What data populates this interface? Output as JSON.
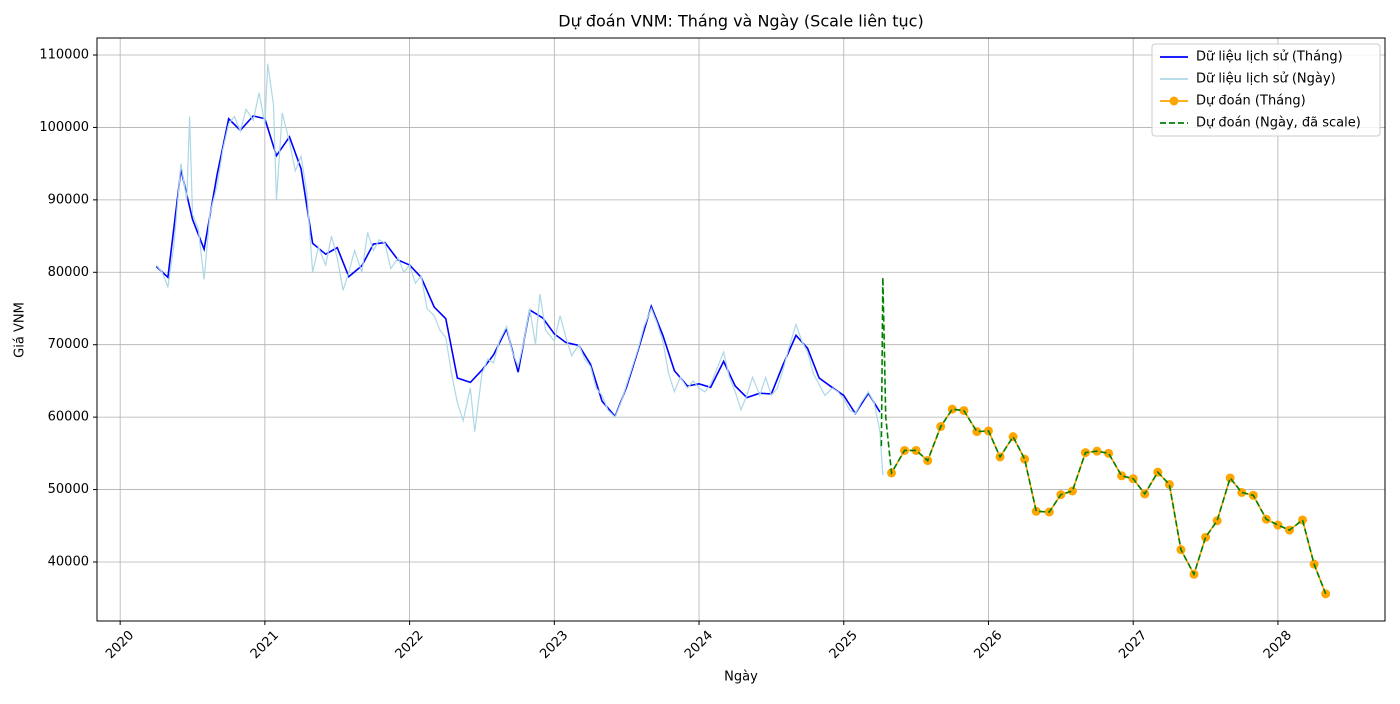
{
  "chart_data": {
    "type": "line",
    "title": "Dự đoán VNM: Tháng và Ngày (Scale liên tục)",
    "x_label": "Ngày",
    "y_label": "Giá VNM",
    "xlim": [
      2019.84,
      2028.74
    ],
    "ylim": [
      31850,
      112350
    ],
    "xticks": [
      2020,
      2021,
      2022,
      2023,
      2024,
      2025,
      2026,
      2027,
      2028
    ],
    "yticks": [
      40000,
      50000,
      60000,
      70000,
      80000,
      90000,
      100000,
      110000
    ],
    "grid": true,
    "legend_loc": "upper right",
    "series": [
      {
        "name": "Dữ liệu lịch sử (Tháng)",
        "color": "#0000ff",
        "dashed": false,
        "marker": false,
        "x": [
          2020.25,
          2020.33,
          2020.42,
          2020.5,
          2020.58,
          2020.67,
          2020.75,
          2020.83,
          2020.92,
          2021.0,
          2021.08,
          2021.17,
          2021.25,
          2021.33,
          2021.42,
          2021.5,
          2021.58,
          2021.67,
          2021.75,
          2021.83,
          2021.92,
          2022.0,
          2022.08,
          2022.17,
          2022.25,
          2022.33,
          2022.42,
          2022.5,
          2022.58,
          2022.67,
          2022.75,
          2022.83,
          2022.92,
          2023.0,
          2023.08,
          2023.17,
          2023.25,
          2023.33,
          2023.42,
          2023.5,
          2023.58,
          2023.67,
          2023.75,
          2023.83,
          2023.92,
          2024.0,
          2024.08,
          2024.17,
          2024.25,
          2024.33,
          2024.42,
          2024.5,
          2024.58,
          2024.67,
          2024.75,
          2024.83,
          2024.92,
          2025.0,
          2025.08,
          2025.17,
          2025.25
        ],
        "values": [
          80800,
          79300,
          94200,
          87300,
          83200,
          93500,
          101200,
          99600,
          101600,
          101200,
          96100,
          98700,
          94300,
          84000,
          82500,
          83400,
          79400,
          80900,
          83900,
          84100,
          81700,
          81000,
          79300,
          75200,
          73600,
          65400,
          64800,
          66500,
          68600,
          72200,
          66200,
          74800,
          73700,
          71500,
          70300,
          69900,
          67300,
          62200,
          60100,
          64200,
          69300,
          75300,
          71300,
          66400,
          64300,
          64600,
          64100,
          67700,
          64300,
          62700,
          63300,
          63200,
          67200,
          71300,
          69500,
          65400,
          64100,
          63000,
          60500,
          63300,
          60700
        ]
      },
      {
        "name": "Dữ liệu lịch sử (Ngày)",
        "color": "#add8e6",
        "dashed": false,
        "marker": false,
        "x": [
          2020.25,
          2020.29,
          2020.33,
          2020.37,
          2020.42,
          2020.46,
          2020.48,
          2020.5,
          2020.54,
          2020.58,
          2020.62,
          2020.67,
          2020.71,
          2020.75,
          2020.79,
          2020.83,
          2020.87,
          2020.92,
          2020.96,
          2021.0,
          2021.02,
          2021.06,
          2021.08,
          2021.12,
          2021.17,
          2021.21,
          2021.25,
          2021.29,
          2021.33,
          2021.37,
          2021.42,
          2021.46,
          2021.5,
          2021.54,
          2021.58,
          2021.62,
          2021.67,
          2021.71,
          2021.75,
          2021.79,
          2021.83,
          2021.87,
          2021.92,
          2021.96,
          2022.0,
          2022.04,
          2022.08,
          2022.12,
          2022.17,
          2022.21,
          2022.25,
          2022.29,
          2022.33,
          2022.37,
          2022.42,
          2022.45,
          2022.5,
          2022.54,
          2022.58,
          2022.62,
          2022.67,
          2022.71,
          2022.75,
          2022.79,
          2022.83,
          2022.87,
          2022.9,
          2022.94,
          2023.0,
          2023.04,
          2023.08,
          2023.12,
          2023.17,
          2023.21,
          2023.25,
          2023.29,
          2023.33,
          2023.37,
          2023.42,
          2023.46,
          2023.5,
          2023.54,
          2023.58,
          2023.62,
          2023.67,
          2023.71,
          2023.75,
          2023.79,
          2023.83,
          2023.87,
          2023.92,
          2023.96,
          2024.0,
          2024.04,
          2024.08,
          2024.12,
          2024.17,
          2024.21,
          2024.25,
          2024.29,
          2024.33,
          2024.37,
          2024.42,
          2024.46,
          2024.5,
          2024.54,
          2024.58,
          2024.62,
          2024.67,
          2024.71,
          2024.75,
          2024.79,
          2024.83,
          2024.87,
          2024.92,
          2024.96,
          2025.0,
          2025.04,
          2025.08,
          2025.12,
          2025.17,
          2025.21,
          2025.25,
          2025.27
        ],
        "values": [
          81000,
          80000,
          78000,
          83500,
          95000,
          90000,
          101500,
          88000,
          86000,
          79000,
          88000,
          92000,
          97000,
          100500,
          101500,
          99500,
          102500,
          101000,
          104800,
          100500,
          108800,
          103000,
          90000,
          102000,
          98000,
          94000,
          96000,
          91000,
          80000,
          83500,
          81000,
          85000,
          82000,
          77500,
          80000,
          83000,
          80000,
          85500,
          83000,
          84500,
          84000,
          80500,
          82000,
          80000,
          81000,
          78500,
          79500,
          75000,
          74000,
          72000,
          71000,
          66000,
          62000,
          59500,
          64000,
          58000,
          66000,
          68000,
          67500,
          70500,
          72500,
          69000,
          67000,
          70500,
          75000,
          70000,
          77000,
          72000,
          70500,
          74000,
          71000,
          68500,
          70000,
          68000,
          67000,
          64000,
          63000,
          61000,
          60000,
          62000,
          64500,
          67000,
          69500,
          72500,
          75000,
          73000,
          70500,
          66000,
          63500,
          65500,
          64000,
          65000,
          64000,
          63500,
          64500,
          66500,
          69000,
          65500,
          63500,
          61000,
          63000,
          65500,
          63000,
          65500,
          63000,
          64000,
          66500,
          69500,
          72800,
          70500,
          69000,
          66000,
          64500,
          63000,
          64000,
          63500,
          62500,
          61000,
          60500,
          62000,
          63500,
          62000,
          58000,
          52000
        ]
      },
      {
        "name": "Dự đoán (Tháng)",
        "color": "#ffa500",
        "dashed": false,
        "marker": true,
        "x": [
          2025.33,
          2025.42,
          2025.5,
          2025.58,
          2025.67,
          2025.75,
          2025.83,
          2025.92,
          2026.0,
          2026.08,
          2026.17,
          2026.25,
          2026.33,
          2026.42,
          2026.5,
          2026.58,
          2026.67,
          2026.75,
          2026.83,
          2026.92,
          2027.0,
          2027.08,
          2027.17,
          2027.25,
          2027.33,
          2027.42,
          2027.5,
          2027.58,
          2027.67,
          2027.75,
          2027.83,
          2027.92,
          2028.0,
          2028.08,
          2028.17,
          2028.25,
          2028.33
        ],
        "values": [
          52300,
          55400,
          55400,
          54000,
          58700,
          61100,
          60900,
          58000,
          58100,
          54500,
          57300,
          54200,
          47000,
          46900,
          49300,
          49800,
          55100,
          55300,
          55000,
          51900,
          51500,
          49400,
          52400,
          50700,
          41700,
          38300,
          43400,
          45700,
          51600,
          49600,
          49200,
          45900,
          45100,
          44400,
          45800,
          39700,
          35600
        ]
      },
      {
        "name": "Dự đoán (Ngày, đã scale)",
        "color": "#008000",
        "dashed": true,
        "marker": false,
        "x": [
          2025.26,
          2025.27,
          2025.28,
          2025.29,
          2025.33,
          2025.42,
          2025.5,
          2025.58,
          2025.67,
          2025.75,
          2025.83,
          2025.92,
          2026.0,
          2026.08,
          2026.17,
          2026.25,
          2026.33,
          2026.42,
          2026.5,
          2026.58,
          2026.67,
          2026.75,
          2026.83,
          2026.92,
          2027.0,
          2027.08,
          2027.17,
          2027.25,
          2027.33,
          2027.42,
          2027.5,
          2027.58,
          2027.67,
          2027.75,
          2027.83,
          2027.92,
          2028.0,
          2028.08,
          2028.17,
          2028.25,
          2028.33
        ],
        "values": [
          56000,
          79300,
          70000,
          60000,
          52300,
          55400,
          55400,
          54000,
          58700,
          61100,
          60900,
          58000,
          58100,
          54500,
          57300,
          54200,
          47000,
          46900,
          49300,
          49800,
          55100,
          55300,
          55000,
          51900,
          51500,
          49400,
          52400,
          50700,
          41700,
          38300,
          43400,
          45700,
          51600,
          49600,
          49200,
          45900,
          45100,
          44400,
          45800,
          39700,
          35600
        ]
      }
    ]
  }
}
